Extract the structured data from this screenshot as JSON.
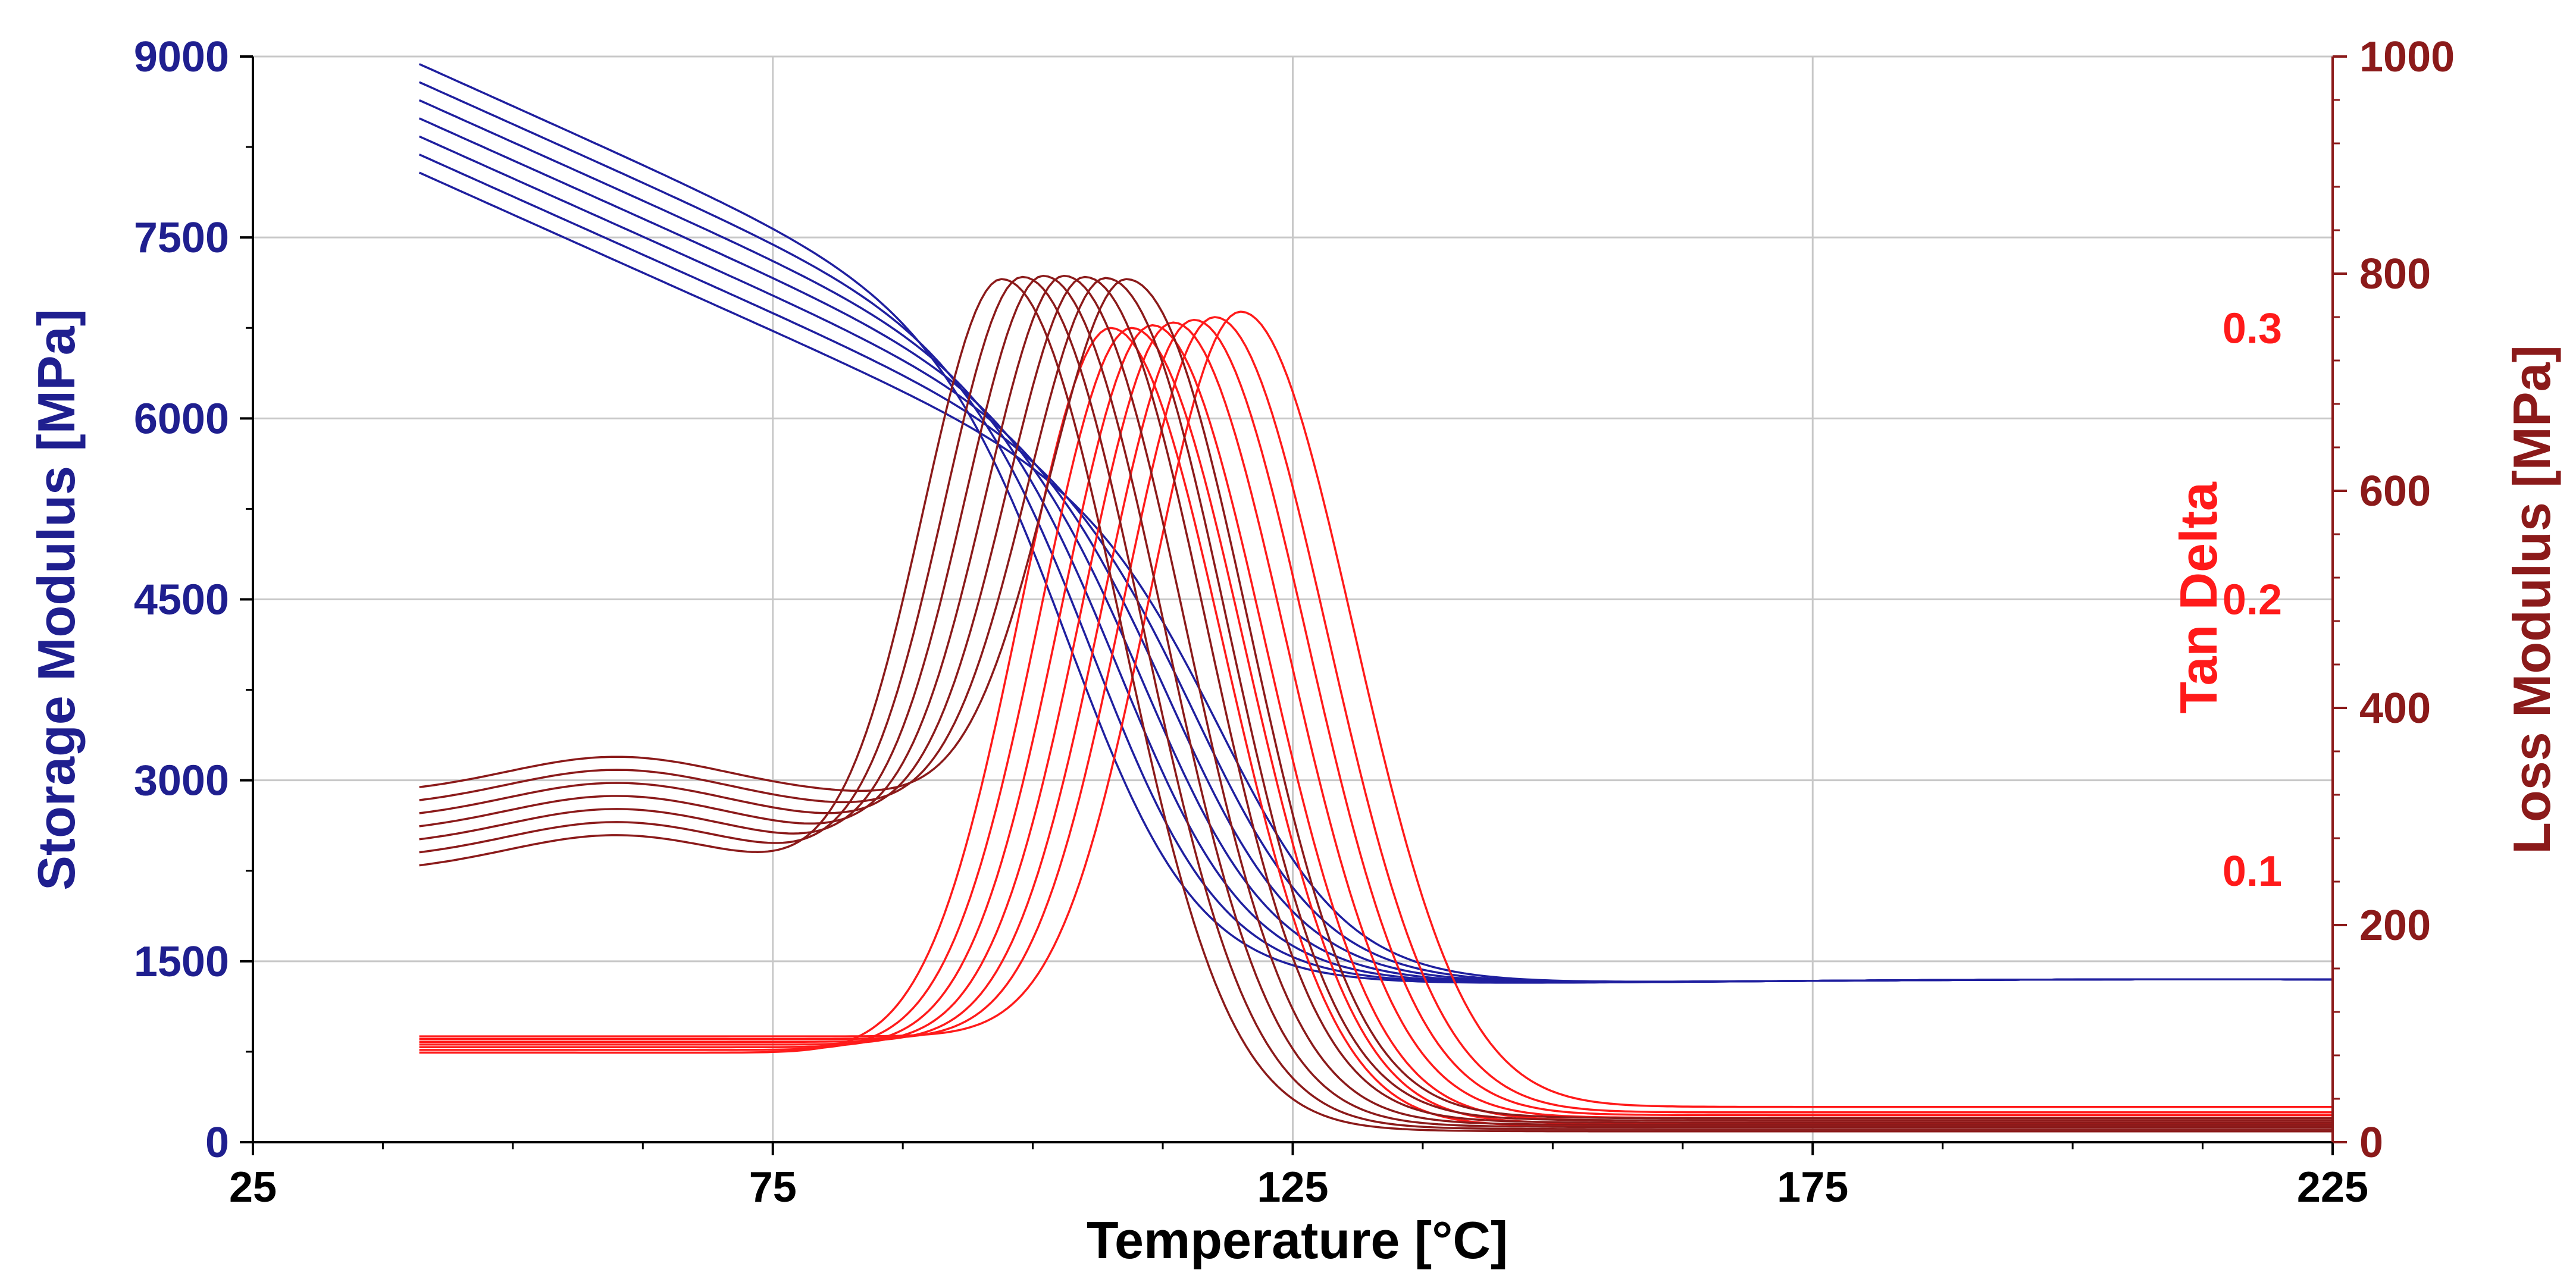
{
  "chart_data": {
    "type": "line",
    "title": "",
    "xlabel": "Temperature [°C]",
    "ylabel_left": "Storage Modulus [MPa]",
    "ylabel_tan": "Tan Delta",
    "ylabel_right": "Loss Modulus [MPa]",
    "xlim": [
      25,
      225
    ],
    "ylim_left": [
      0,
      9000
    ],
    "ylim_tan": [
      0,
      0.4
    ],
    "ylim_right": [
      0,
      1000
    ],
    "grid": true,
    "x_ticks": [
      "25",
      "75",
      "125",
      "175",
      "225"
    ],
    "y_ticks_left": [
      "0",
      "1500",
      "3000",
      "4500",
      "6000",
      "7500",
      "9000"
    ],
    "y_ticks_tan": [
      "0.1",
      "0.2",
      "0.3"
    ],
    "y_ticks_right": [
      "0",
      "200",
      "400",
      "600",
      "800",
      "1000"
    ],
    "colors": {
      "storage": "#1f1f9f",
      "tan": "#ff1a1a",
      "loss": "#8b1a1a",
      "grid": "#c8c8c8"
    },
    "series_groups": [
      {
        "name": "Storage Modulus",
        "axis": "left",
        "color_key": "storage",
        "curves": [
          {
            "start": 8950,
            "mid": 104.5,
            "width": 15
          },
          {
            "start": 8800,
            "mid": 107,
            "width": 15
          },
          {
            "start": 8650,
            "mid": 109.5,
            "width": 15
          },
          {
            "start": 8500,
            "mid": 112,
            "width": 15
          },
          {
            "start": 8350,
            "mid": 114.5,
            "width": 15
          },
          {
            "start": 8200,
            "mid": 117,
            "width": 15
          },
          {
            "start": 8050,
            "mid": 119.5,
            "width": 15
          }
        ]
      },
      {
        "name": "Tan Delta",
        "axis": "tan",
        "color_key": "tan",
        "curves": [
          {
            "peak_x": 107.5,
            "peak": 0.3,
            "base": 0.033,
            "final": 0.006
          },
          {
            "peak_x": 109.5,
            "peak": 0.3,
            "base": 0.034,
            "final": 0.007
          },
          {
            "peak_x": 111.5,
            "peak": 0.301,
            "base": 0.035,
            "final": 0.008
          },
          {
            "peak_x": 113.5,
            "peak": 0.302,
            "base": 0.036,
            "final": 0.009
          },
          {
            "peak_x": 115.5,
            "peak": 0.303,
            "base": 0.037,
            "final": 0.01
          },
          {
            "peak_x": 117.5,
            "peak": 0.304,
            "base": 0.038,
            "final": 0.011
          },
          {
            "peak_x": 120,
            "peak": 0.306,
            "base": 0.039,
            "final": 0.013
          }
        ]
      },
      {
        "name": "Loss Modulus",
        "axis": "right",
        "color_key": "loss",
        "curves": [
          {
            "peak_x": 97,
            "peak": 795,
            "base": 248,
            "final": 10
          },
          {
            "peak_x": 99,
            "peak": 797,
            "base": 260,
            "final": 12
          },
          {
            "peak_x": 101,
            "peak": 798,
            "base": 272,
            "final": 14
          },
          {
            "peak_x": 103,
            "peak": 798,
            "base": 284,
            "final": 16
          },
          {
            "peak_x": 105,
            "peak": 797,
            "base": 296,
            "final": 18
          },
          {
            "peak_x": 107,
            "peak": 796,
            "base": 308,
            "final": 20
          },
          {
            "peak_x": 109,
            "peak": 795,
            "base": 320,
            "final": 22
          }
        ]
      }
    ]
  }
}
